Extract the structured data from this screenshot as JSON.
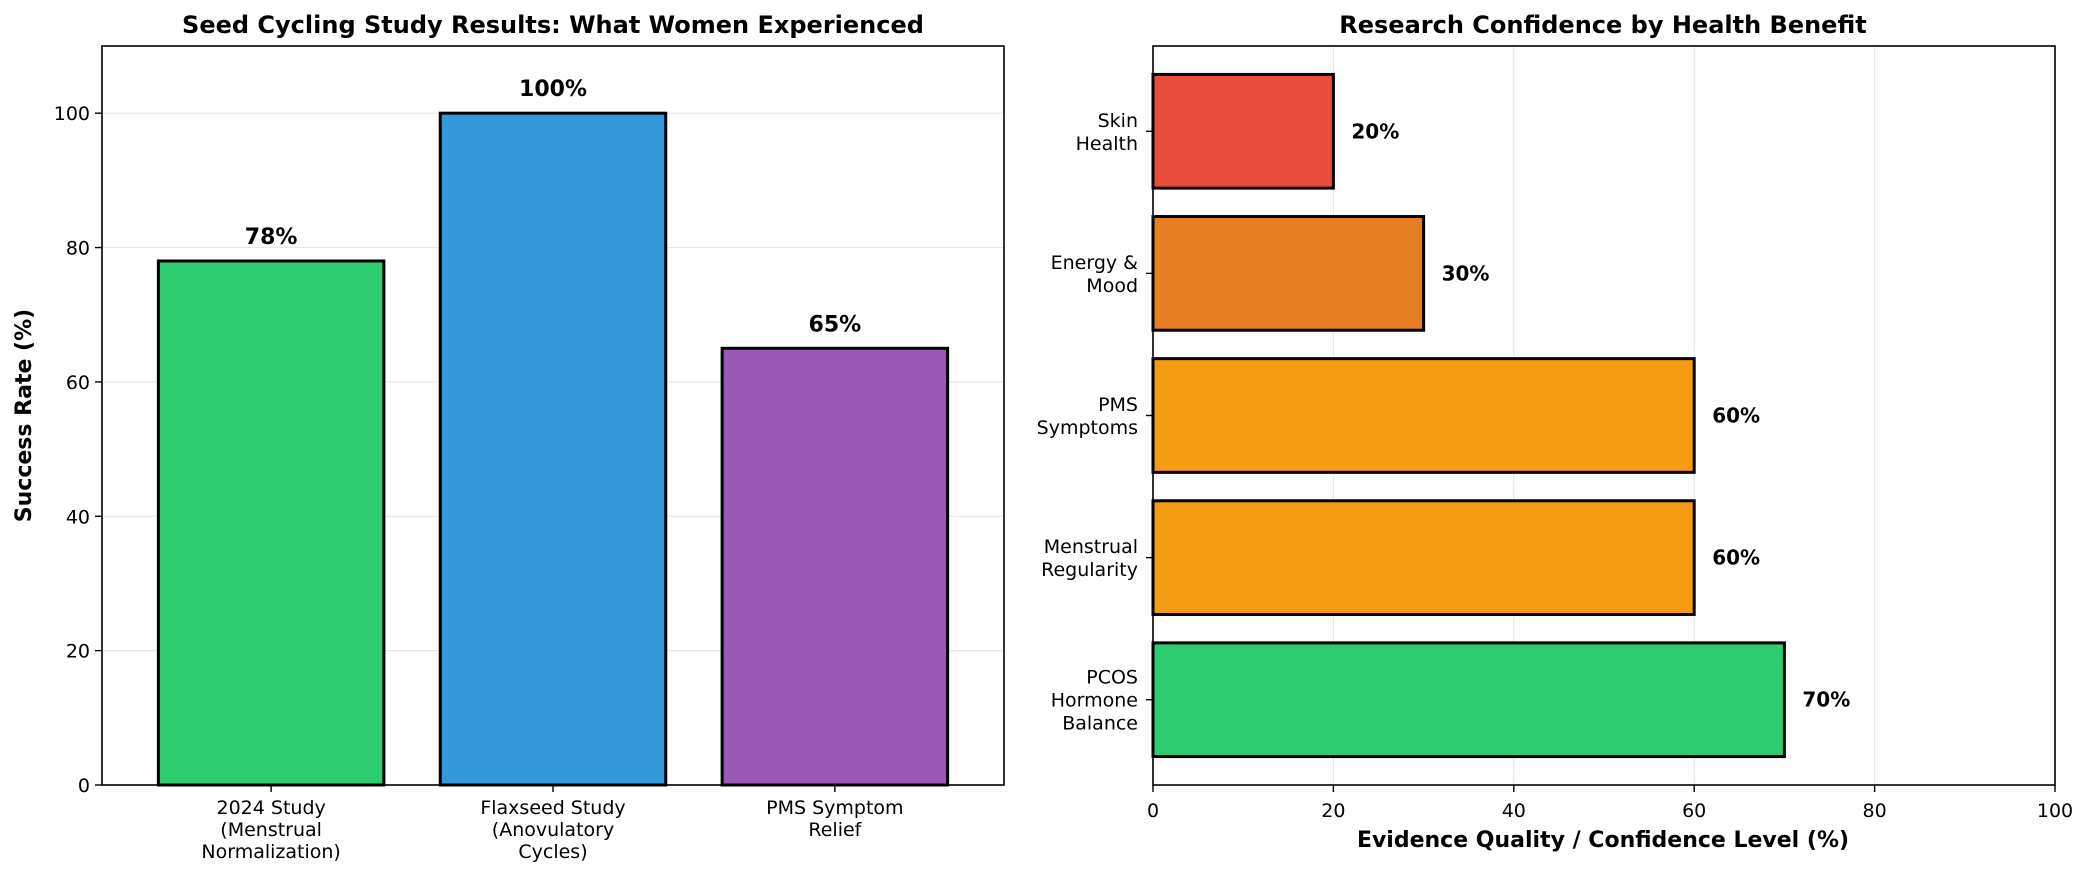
{
  "chart_data": [
    {
      "type": "bar",
      "title": "Seed Cycling Study Results: What Women Experienced",
      "xlabel": "",
      "ylabel": "Success Rate (%)",
      "ylim": [
        0,
        110
      ],
      "yticks": [
        0,
        20,
        40,
        60,
        80,
        100
      ],
      "grid": true,
      "categories": [
        [
          "2024 Study",
          "(Menstrual",
          "Normalization)"
        ],
        [
          "Flaxseed Study",
          "(Anovulatory",
          "Cycles)"
        ],
        [
          "PMS Symptom",
          "Relief"
        ]
      ],
      "values": [
        78,
        100,
        65
      ],
      "value_labels": [
        "78%",
        "100%",
        "65%"
      ],
      "colors": [
        "#2ecc71",
        "#3498db",
        "#9b59b6"
      ]
    },
    {
      "type": "bar",
      "orientation": "horizontal",
      "title": "Research Confidence by Health Benefit",
      "xlabel": "Evidence Quality / Confidence Level (%)",
      "ylabel": "",
      "xlim": [
        0,
        100
      ],
      "xticks": [
        0,
        20,
        40,
        60,
        80,
        100
      ],
      "grid": true,
      "categories": [
        [
          "PCOS",
          "Hormone",
          "Balance"
        ],
        [
          "Menstrual",
          "Regularity"
        ],
        [
          "PMS",
          "Symptoms"
        ],
        [
          "Energy &",
          "Mood"
        ],
        [
          "Skin",
          "Health"
        ]
      ],
      "values": [
        70,
        60,
        60,
        30,
        20
      ],
      "value_labels": [
        "70%",
        "60%",
        "60%",
        "30%",
        "20%"
      ],
      "colors": [
        "#2ecc71",
        "#f39c12",
        "#f39c12",
        "#e67e22",
        "#e74c3c"
      ]
    }
  ]
}
